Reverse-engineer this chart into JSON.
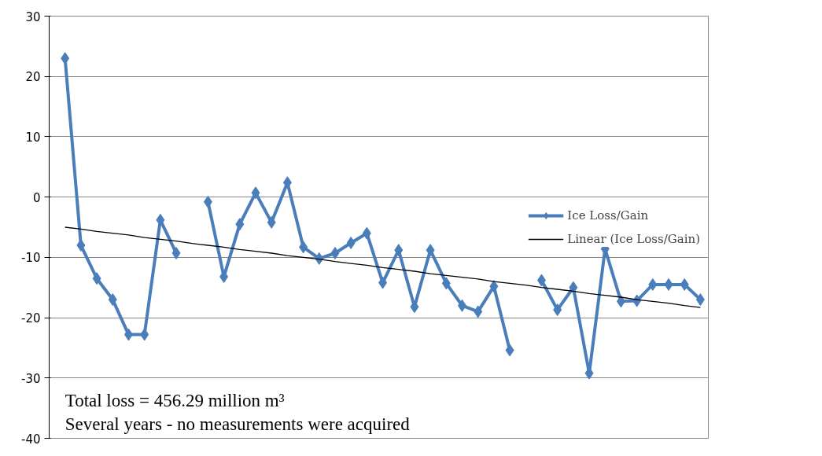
{
  "chart_data": {
    "type": "line",
    "categories": [
      null,
      null,
      null,
      null,
      null,
      null,
      null,
      null,
      null,
      null,
      null,
      null,
      null,
      null,
      null,
      null,
      null,
      null,
      null,
      null,
      null,
      null,
      null,
      null,
      null,
      null,
      null,
      null,
      null,
      null,
      null,
      null,
      null,
      null,
      null,
      null,
      null,
      null,
      null,
      null,
      null
    ],
    "ylim": [
      -40,
      30
    ],
    "yticks": [
      -40,
      -30,
      -20,
      -10,
      0,
      10,
      20,
      30
    ],
    "grid": "y",
    "legend": "right",
    "marker": "diamond",
    "line_style": "solid",
    "series": [
      {
        "name": "Ice Loss/Gain",
        "color": "#4a7ebb",
        "values": [
          23,
          -8,
          -13.5,
          -17,
          -22.8,
          -22.8,
          -3.8,
          -9.3,
          null,
          -0.8,
          -13.2,
          -4.5,
          0.7,
          -4.2,
          2.4,
          -8.3,
          -10.2,
          -9.3,
          -7.6,
          -6,
          -14.2,
          -8.8,
          -18.2,
          -8.8,
          -14.3,
          -18,
          -19,
          -14.8,
          -25.4,
          null,
          -13.8,
          -18.7,
          -15,
          -29.2,
          -8.6,
          -17.3,
          -17.2,
          -14.5,
          -14.5,
          -14.5,
          -17
        ]
      },
      {
        "name": "Linear (Ice Loss/Gain)",
        "marker": "none",
        "color": "#000000",
        "values": [
          -5,
          -5.3,
          -5.7,
          -6,
          -6.3,
          -6.7,
          -7,
          -7.3,
          -7.7,
          -8,
          -8.3,
          -8.7,
          -9,
          -9.3,
          -9.7,
          -10,
          -10.3,
          -10.7,
          -11,
          -11.3,
          -11.7,
          -12,
          -12.3,
          -12.7,
          -13,
          -13.3,
          -13.6,
          -14,
          -14.3,
          -14.6,
          -15,
          -15.3,
          -15.6,
          -16,
          -16.3,
          -16.6,
          -17,
          -17.3,
          -17.6,
          -18,
          -18.3
        ]
      }
    ],
    "annotations": [
      "Total loss = 456.29 million m³",
      "Several years - no measurements were acquired"
    ]
  }
}
